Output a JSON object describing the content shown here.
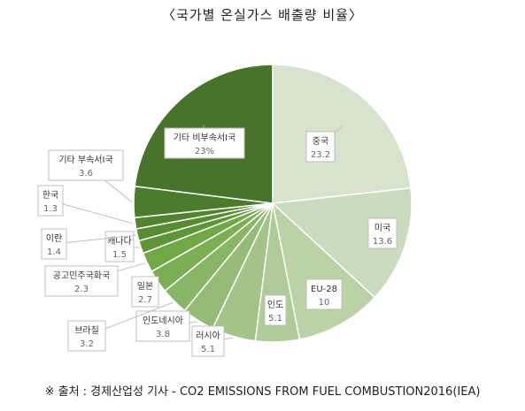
{
  "title": "〈국가별 온실가스 배출량 비율〉",
  "source": "※ 출처 : 경제산업성 기사 - CO2 EMISSIONS FROM FUEL COMBUSTION2016(IEA)",
  "chart_data": {
    "type": "pie",
    "title": "〈국가별 온실가스 배출량 비율〉",
    "slices": [
      {
        "label": "중국",
        "value": 23.2,
        "value_label": "23.2",
        "color": "#d7e3cc"
      },
      {
        "label": "미국",
        "value": 13.6,
        "value_label": "13.6",
        "color": "#cbdbbd"
      },
      {
        "label": "EU-28",
        "value": 10,
        "value_label": "10",
        "color": "#bbd2a6"
      },
      {
        "label": "인도",
        "value": 5.1,
        "value_label": "5.1",
        "color": "#afcb98"
      },
      {
        "label": "러시아",
        "value": 5.1,
        "value_label": "5.1",
        "color": "#a3c389"
      },
      {
        "label": "인도네시아",
        "value": 3.8,
        "value_label": "3.8",
        "color": "#96bb78"
      },
      {
        "label": "브라질",
        "value": 3.2,
        "value_label": "3.2",
        "color": "#89b566"
      },
      {
        "label": "일본",
        "value": 2.7,
        "value_label": "2.7",
        "color": "#7cae54"
      },
      {
        "label": "공고민주국화국",
        "value": 2.3,
        "value_label": "2.3",
        "color": "#70a846"
      },
      {
        "label": "캐나다",
        "value": 1.5,
        "value_label": "1.5",
        "color": "#5e9536"
      },
      {
        "label": "이란",
        "value": 1.4,
        "value_label": "1.4",
        "color": "#578c31"
      },
      {
        "label": "한국",
        "value": 1.3,
        "value_label": "1.3",
        "color": "#52832f"
      },
      {
        "label": "기타 부속서I국",
        "value": 3.6,
        "value_label": "3.6",
        "color": "#4c7b2c"
      },
      {
        "label": "기타 비부속서I국",
        "value": 23,
        "value_label": "23%",
        "color": "#47742a"
      }
    ]
  }
}
